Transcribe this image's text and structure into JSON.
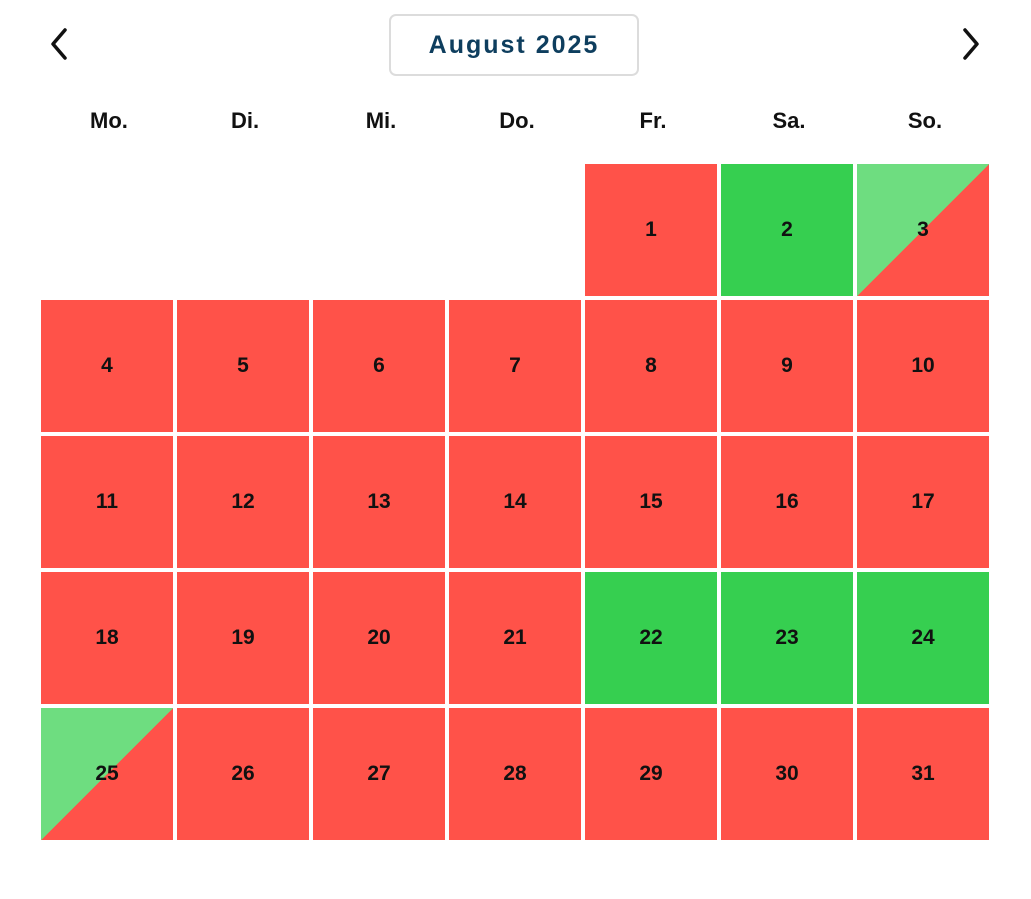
{
  "calendar": {
    "month_label": "August 2025",
    "prev_icon": "chevron-left-icon",
    "next_icon": "chevron-right-icon",
    "weekdays": [
      "Mo.",
      "Di.",
      "Mi.",
      "Do.",
      "Fr.",
      "Sa.",
      "So."
    ],
    "colors": {
      "booked": "#ff5249",
      "free": "#36cf50",
      "half_free": "#6edd80",
      "title": "#0e3e5e"
    },
    "leading_blank_days": 4,
    "days": [
      {
        "day": "1",
        "status": "booked"
      },
      {
        "day": "2",
        "status": "free"
      },
      {
        "day": "3",
        "status": "half"
      },
      {
        "day": "4",
        "status": "booked"
      },
      {
        "day": "5",
        "status": "booked"
      },
      {
        "day": "6",
        "status": "booked"
      },
      {
        "day": "7",
        "status": "booked"
      },
      {
        "day": "8",
        "status": "booked"
      },
      {
        "day": "9",
        "status": "booked"
      },
      {
        "day": "10",
        "status": "booked"
      },
      {
        "day": "11",
        "status": "booked"
      },
      {
        "day": "12",
        "status": "booked"
      },
      {
        "day": "13",
        "status": "booked"
      },
      {
        "day": "14",
        "status": "booked"
      },
      {
        "day": "15",
        "status": "booked"
      },
      {
        "day": "16",
        "status": "booked"
      },
      {
        "day": "17",
        "status": "booked"
      },
      {
        "day": "18",
        "status": "booked"
      },
      {
        "day": "19",
        "status": "booked"
      },
      {
        "day": "20",
        "status": "booked"
      },
      {
        "day": "21",
        "status": "booked"
      },
      {
        "day": "22",
        "status": "free"
      },
      {
        "day": "23",
        "status": "free"
      },
      {
        "day": "24",
        "status": "free"
      },
      {
        "day": "25",
        "status": "half"
      },
      {
        "day": "26",
        "status": "booked"
      },
      {
        "day": "27",
        "status": "booked"
      },
      {
        "day": "28",
        "status": "booked"
      },
      {
        "day": "29",
        "status": "booked"
      },
      {
        "day": "30",
        "status": "booked"
      },
      {
        "day": "31",
        "status": "booked"
      }
    ]
  }
}
